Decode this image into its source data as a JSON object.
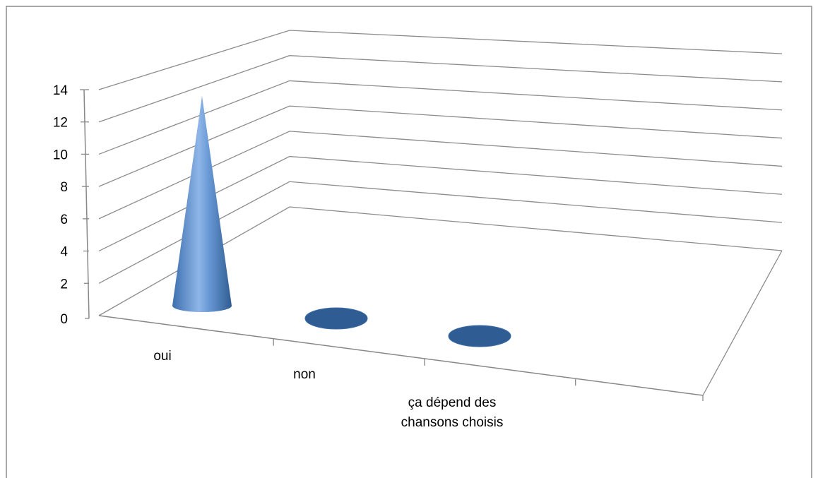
{
  "chart_data": {
    "type": "bar",
    "style": "3d-cone",
    "categories": [
      "oui",
      "non",
      "ça dépend des chansons choisis"
    ],
    "category_lines": [
      [
        "oui"
      ],
      [
        "non"
      ],
      [
        "ça dépend des",
        "chansons choisis"
      ]
    ],
    "values": [
      13,
      0,
      0
    ],
    "ylim": [
      0,
      14
    ],
    "yticks": [
      0,
      2,
      4,
      6,
      8,
      10,
      12,
      14
    ],
    "grid": true,
    "legend": "none",
    "title": "",
    "xlabel": "",
    "ylabel": ""
  },
  "colors": {
    "series": "#4f81bd",
    "series_dark": "#2f5c92",
    "series_light": "#a9c8ee",
    "axis": "#888888",
    "grid": "#8c8c8c",
    "border": "#8c8c8c"
  }
}
